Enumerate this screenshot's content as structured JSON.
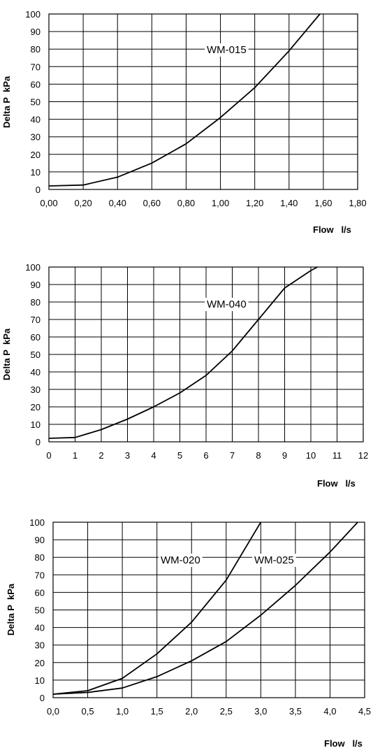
{
  "chart_data": [
    {
      "type": "line",
      "ylabel": "Delta P  kPa",
      "xlabel": "Flow   l/s",
      "ylim": [
        0,
        100
      ],
      "xlim": [
        0,
        1.8
      ],
      "x_ticks": [
        "0,00",
        "0,20",
        "0,40",
        "0,60",
        "0,80",
        "1,00",
        "1,20",
        "1,40",
        "1,60",
        "1,80"
      ],
      "y_ticks": [
        "0",
        "10",
        "20",
        "30",
        "40",
        "50",
        "60",
        "70",
        "80",
        "90",
        "100"
      ],
      "grid": true,
      "series": [
        {
          "name": "WM-015",
          "x": [
            0.0,
            0.2,
            0.4,
            0.6,
            0.8,
            1.0,
            1.2,
            1.4,
            1.58
          ],
          "y": [
            2,
            2.5,
            7,
            15,
            26,
            41,
            58,
            79,
            100
          ]
        }
      ]
    },
    {
      "type": "line",
      "ylabel": "Delta P  kPa",
      "xlabel": "Flow   l/s",
      "ylim": [
        0,
        100
      ],
      "xlim": [
        0,
        12
      ],
      "x_ticks": [
        "0",
        "1",
        "2",
        "3",
        "4",
        "5",
        "6",
        "7",
        "8",
        "9",
        "10",
        "11",
        "12"
      ],
      "y_ticks": [
        "0",
        "10",
        "20",
        "30",
        "40",
        "50",
        "60",
        "70",
        "80",
        "90",
        "100"
      ],
      "grid": true,
      "series": [
        {
          "name": "WM-040",
          "x": [
            0,
            1,
            2,
            3,
            4,
            5,
            6,
            7,
            8,
            9,
            10,
            10.25
          ],
          "y": [
            2,
            2.5,
            7,
            13,
            20,
            28,
            38,
            52,
            70,
            88,
            98,
            100
          ]
        }
      ]
    },
    {
      "type": "line",
      "ylabel": "Delta P  kPa",
      "xlabel": "Flow   l/s",
      "ylim": [
        0,
        100
      ],
      "xlim": [
        0,
        4.5
      ],
      "x_ticks": [
        "0,0",
        "0,5",
        "1,0",
        "1,5",
        "2,0",
        "2,5",
        "3,0",
        "3,5",
        "4,0",
        "4,5"
      ],
      "y_ticks": [
        "0",
        "10",
        "20",
        "30",
        "40",
        "50",
        "60",
        "70",
        "80",
        "90",
        "100"
      ],
      "grid": true,
      "series": [
        {
          "name": "WM-020",
          "x": [
            0.0,
            0.5,
            1.0,
            1.5,
            2.0,
            2.5,
            3.0
          ],
          "y": [
            2,
            4,
            11,
            25,
            43,
            67,
            100
          ]
        },
        {
          "name": "WM-025",
          "x": [
            0.0,
            0.5,
            1.0,
            1.5,
            2.0,
            2.5,
            3.0,
            3.5,
            4.0,
            4.4
          ],
          "y": [
            2,
            3,
            5.5,
            12,
            21,
            32,
            47,
            64,
            83,
            100
          ]
        }
      ]
    }
  ]
}
